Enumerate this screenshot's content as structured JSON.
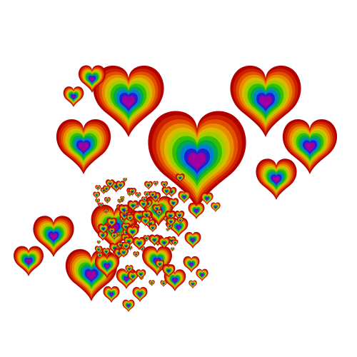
{
  "scene": {
    "subject": "rainbow-hearts",
    "background": "#ffffff",
    "palette": [
      "#b00000",
      "#cc2000",
      "#e05000",
      "#e88a00",
      "#d8bb00",
      "#9ccf00",
      "#33c000",
      "#00a850",
      "#0080d0",
      "#2020d0",
      "#a000a0"
    ]
  }
}
